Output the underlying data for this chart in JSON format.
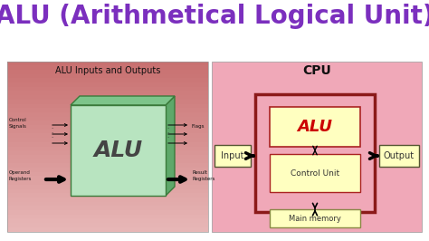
{
  "title": "ALU (Arithmetical Logical Unit)",
  "title_color": "#7B2FBE",
  "title_fontsize": 20,
  "bg_color": "#FFFFFF",
  "left_panel_bg_top": "#C87070",
  "left_panel_bg_bot": "#E8B0B0",
  "left_panel_title": "ALU Inputs and Outputs",
  "left_alu_face_color": "#B8E4C0",
  "left_alu_top_color": "#7DC48A",
  "left_alu_right_color": "#5EA86A",
  "left_alu_edge_color": "#3A7A3A",
  "left_alu_text": "ALU",
  "right_panel_bg": "#F0A8B8",
  "right_cpu_label": "CPU",
  "right_cpu_border": "#8B1A1A",
  "right_alu_box_color": "#FFFFC0",
  "right_alu_text": "ALU",
  "right_alu_text_color": "#CC0000",
  "control_unit_box_color": "#FFFFC0",
  "control_unit_text": "Control Unit",
  "main_memory_box_color": "#FFFFC0",
  "main_memory_text": "Main memory",
  "input_box_color": "#FFFFC0",
  "input_text": "Input",
  "output_box_color": "#FFFFC0",
  "output_text": "Output",
  "arrow_color": "#000000"
}
